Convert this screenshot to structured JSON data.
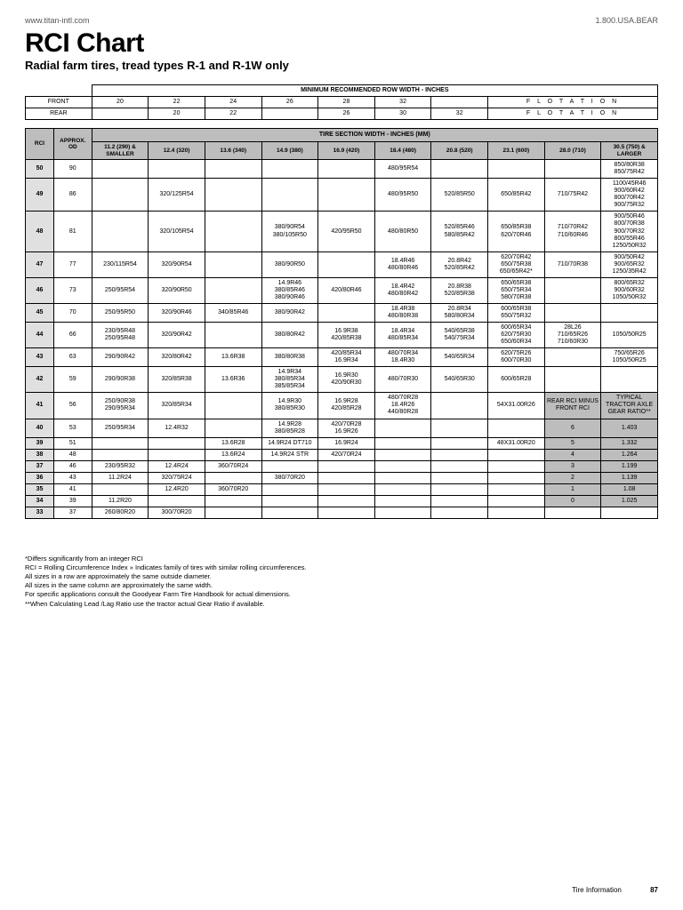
{
  "header": {
    "url": "www.titan-intl.com",
    "phone": "1.800.USA.BEAR"
  },
  "title": "RCI Chart",
  "subtitle": "Radial farm tires, tread types R-1 and R-1W only",
  "table": {
    "top_title": "MINIMUM RECOMMENDED ROW WIDTH  -  INCHES",
    "front_label": "FRONT",
    "rear_label": "REAR",
    "front_vals": [
      "20",
      "22",
      "24",
      "26",
      "28",
      "32",
      "",
      "F L O T A T I O N"
    ],
    "rear_vals": [
      "",
      "20",
      "22",
      "",
      "26",
      "30",
      "32",
      "F L O T A T I O N"
    ],
    "section_title": "TIRE SECTION WIDTH - INCHES (MM)",
    "rci_label": "RCI",
    "od_label": "APPROX. OD",
    "width_cols": [
      "11.2 (290) & SMALLER",
      "12.4 (320)",
      "13.6 (340)",
      "14.9 (380)",
      "16.9 (420)",
      "18.4 (480)",
      "20.8 (520)",
      "23.1 (600)",
      "28.0 (710)",
      "30.5 (750) & LARGER"
    ],
    "rows": [
      {
        "rci": "50",
        "od": "90",
        "c": [
          "",
          "",
          "",
          "",
          "",
          "480/95R54",
          "",
          "",
          "",
          "850/80R38\n850/75R42"
        ]
      },
      {
        "rci": "49",
        "od": "86",
        "c": [
          "",
          "320/125R54",
          "",
          "",
          "",
          "480/95R50",
          "520/85R50",
          "650/85R42",
          "710/75R42",
          "1100/45R46\n900/60R42\n800/70R42\n900/75R32"
        ]
      },
      {
        "rci": "48",
        "od": "81",
        "c": [
          "",
          "320/105R54",
          "",
          "380/90R54\n380/105R50",
          "420/95R50",
          "480/80R50",
          "520/85R46\n580/85R42",
          "650/85R38\n620/70R46",
          "710/70R42\n710/60R46",
          "900/50R46\n800/70R38\n900/70R32\n800/55R46\n1250/50R32"
        ]
      },
      {
        "rci": "47",
        "od": "77",
        "c": [
          "230/115R54",
          "320/90R54",
          "",
          "380/90R50",
          "",
          "18.4R46\n480/80R46",
          "20.8R42\n520/85R42",
          "620/70R42\n650/75R38\n650/65R42*",
          "710/70R38",
          "900/50R42\n900/65R32\n1250/35R42"
        ]
      },
      {
        "rci": "46",
        "od": "73",
        "c": [
          "250/95R54",
          "320/90R50",
          "",
          "14.9R46\n380/85R46\n380/90R46",
          "420/80R46",
          "18.4R42\n480/80R42",
          "20.8R38\n520/85R38",
          "650/65R38\n650/75R34\n580/70R38",
          "",
          "800/65R32\n900/60R32\n1050/50R32"
        ]
      },
      {
        "rci": "45",
        "od": "70",
        "c": [
          "250/95R50",
          "320/90R46",
          "340/85R46",
          "380/90R42",
          "",
          "18.4R38\n480/80R38",
          "20.8R34\n580/80R34",
          "600/65R38\n650/75R32",
          "",
          ""
        ]
      },
      {
        "rci": "44",
        "od": "66",
        "c": [
          "230/95R48\n250/95R48",
          "320/90R42",
          "",
          "380/80R42",
          "16.9R38\n420/85R38",
          "18.4R34\n480/85R34",
          "540/65R38\n540/75R34",
          "600/65R34\n620/75R30\n650/60R34",
          "28L26\n710/65R26\n710/60R30",
          "1050/50R25"
        ]
      },
      {
        "rci": "43",
        "od": "63",
        "c": [
          "290/90R42",
          "320/80R42",
          "13.6R38",
          "380/80R38",
          "420/85R34\n16.9R34",
          "480/70R34\n18.4R30",
          "540/65R34",
          "620/75R26\n600/70R30",
          "",
          "750/65R26\n1050/50R25"
        ]
      },
      {
        "rci": "42",
        "od": "59",
        "c": [
          "290/90R38",
          "320/85R38",
          "13.6R36",
          "14.9R34\n380/85R34\n385/85R34",
          "16.9R30\n420/90R30",
          "480/70R30",
          "540/65R30",
          "600/65R28",
          "",
          ""
        ]
      },
      {
        "rci": "41",
        "od": "56",
        "c": [
          "250/90R38\n290/95R34",
          "320/85R34",
          "",
          "14.9R30\n380/85R30",
          "16.9R28\n420/85R28",
          "480/70R28\n18.4R26\n440/80R28",
          "",
          "54X31.00R26",
          "REAR RCI MINUS FRONT RCI",
          "TYPICAL TRACTOR AXLE GEAR RATIO**"
        ],
        "gray": [
          8,
          9
        ]
      },
      {
        "rci": "40",
        "od": "53",
        "c": [
          "250/95R34",
          "12.4R32",
          "",
          "14.9R28\n380/85R28",
          "420/70R28\n16.9R26",
          "",
          "",
          "",
          "6",
          "1.403"
        ],
        "gray": [
          8,
          9
        ]
      },
      {
        "rci": "39",
        "od": "51",
        "c": [
          "",
          "",
          "13.6R28",
          "14.9R24 DT710",
          "16.9R24",
          "",
          "",
          "48X31.00R20",
          "5",
          "1.332"
        ],
        "gray": [
          8,
          9
        ]
      },
      {
        "rci": "38",
        "od": "48",
        "c": [
          "",
          "",
          "13.6R24",
          "14.9R24 STR",
          "420/70R24",
          "",
          "",
          "",
          "4",
          "1.264"
        ],
        "gray": [
          8,
          9
        ]
      },
      {
        "rci": "37",
        "od": "46",
        "c": [
          "230/95R32",
          "12.4R24",
          "360/70R24",
          "",
          "",
          "",
          "",
          "",
          "3",
          "1.199"
        ],
        "gray": [
          8,
          9
        ]
      },
      {
        "rci": "36",
        "od": "43",
        "c": [
          "11.2R24",
          "320/75R24",
          "",
          "380/70R20",
          "",
          "",
          "",
          "",
          "2",
          "1.139"
        ],
        "gray": [
          8,
          9
        ]
      },
      {
        "rci": "35",
        "od": "41",
        "c": [
          "",
          "12.4R20",
          "360/70R20",
          "",
          "",
          "",
          "",
          "",
          "1",
          "1.08"
        ],
        "gray": [
          8,
          9
        ]
      },
      {
        "rci": "34",
        "od": "39",
        "c": [
          "11.2R20",
          "",
          "",
          "",
          "",
          "",
          "",
          "",
          "0",
          "1.025"
        ],
        "gray": [
          8,
          9
        ]
      },
      {
        "rci": "33",
        "od": "37",
        "c": [
          "260/80R20",
          "300/70R20",
          "",
          "",
          "",
          "",
          "",
          "",
          "",
          ""
        ]
      }
    ]
  },
  "notes": [
    "*Differs significantly from an integer RCI",
    "RCI = Rolling Circumference Index  »  Indicates family of tires with similar rolling circumferences.",
    "All sizes in a row are approximately the same outside diameter.",
    "All sizes in the same column are approximately the same width.",
    "For specific applications consult the Goodyear Farm Tire Handbook for actual dimensions.",
    "**When Calculating Lead /Lag Ratio use the tractor actual Gear Ratio if available."
  ],
  "footer": {
    "section": "Tire Information",
    "page": "87"
  }
}
